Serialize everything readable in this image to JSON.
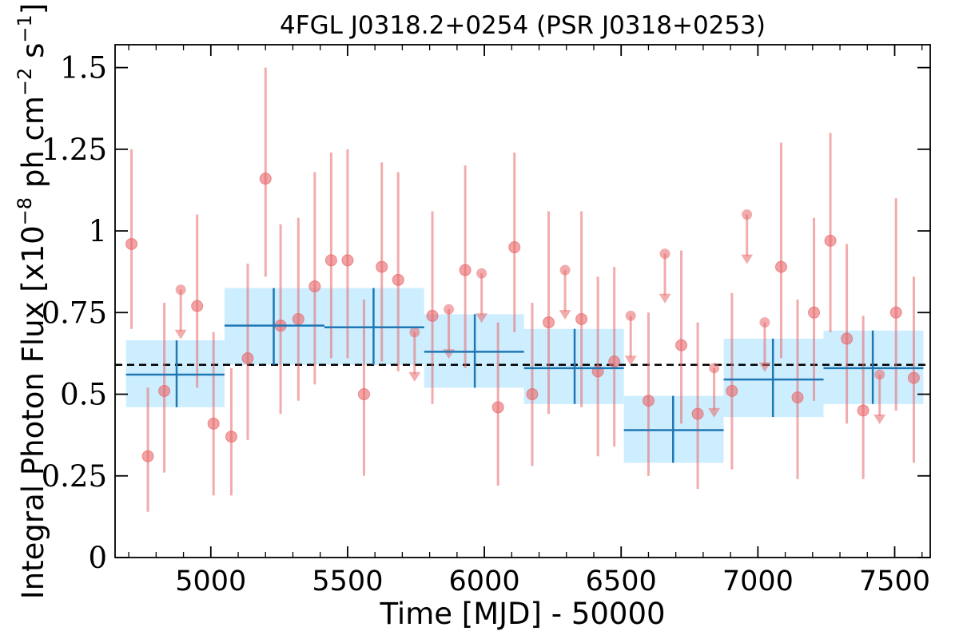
{
  "chart_data": {
    "type": "scatter",
    "title": "4FGL J0318.2+0254 (PSR J0318+0253)",
    "xlabel": "Time [MJD] - 50000",
    "ylabel": "Integral Photon Flux [x10^-8 ph cm^-2 s^-1]",
    "ylabel_parts": {
      "pre": "Integral Photon Flux [x10",
      "exp1": "−8",
      "mid": " ph cm",
      "exp2": "−2",
      "mid2": " s",
      "exp3": "−1",
      "post": "]"
    },
    "xlim": [
      4650,
      7630
    ],
    "ylim": [
      0,
      1.57
    ],
    "x_ticks": [
      5000,
      5500,
      6000,
      6500,
      7000,
      7500
    ],
    "x_tick_labels": [
      "5000",
      "5500",
      "6000",
      "6500",
      "7000",
      "7500"
    ],
    "y_ticks": [
      0,
      0.25,
      0.5,
      0.75,
      1.0,
      1.25,
      1.5
    ],
    "y_tick_labels": [
      "0",
      "0.25",
      "0.5",
      "0.75",
      "1",
      "1.25",
      "1.5"
    ],
    "mean_flux": 0.59,
    "colors": {
      "points": "#e8686a",
      "bins_line": "#1f77b4",
      "bins_band": "#cdeeff",
      "mean_line": "#000000"
    },
    "monthly_points": [
      {
        "x": 4710,
        "y": 0.96,
        "ylo": 0.7,
        "yhi": 1.25
      },
      {
        "x": 4770,
        "y": 0.31,
        "ylo": 0.14,
        "yhi": 0.52
      },
      {
        "x": 4830,
        "y": 0.51,
        "ylo": 0.26,
        "yhi": 0.78
      },
      {
        "x": 4950,
        "y": 0.77,
        "ylo": 0.52,
        "yhi": 1.05
      },
      {
        "x": 5010,
        "y": 0.41,
        "ylo": 0.19,
        "yhi": 0.69
      },
      {
        "x": 5075,
        "y": 0.37,
        "ylo": 0.19,
        "yhi": 0.58
      },
      {
        "x": 5135,
        "y": 0.61,
        "ylo": 0.36,
        "yhi": 0.9
      },
      {
        "x": 5200,
        "y": 1.16,
        "ylo": 0.86,
        "yhi": 1.5
      },
      {
        "x": 5255,
        "y": 0.71,
        "ylo": 0.44,
        "yhi": 1.02
      },
      {
        "x": 5320,
        "y": 0.73,
        "ylo": 0.48,
        "yhi": 1.04
      },
      {
        "x": 5380,
        "y": 0.83,
        "ylo": 0.53,
        "yhi": 1.18
      },
      {
        "x": 5440,
        "y": 0.91,
        "ylo": 0.61,
        "yhi": 1.24
      },
      {
        "x": 5500,
        "y": 0.91,
        "ylo": 0.61,
        "yhi": 1.25
      },
      {
        "x": 5560,
        "y": 0.5,
        "ylo": 0.25,
        "yhi": 0.79
      },
      {
        "x": 5625,
        "y": 0.89,
        "ylo": 0.6,
        "yhi": 1.21
      },
      {
        "x": 5685,
        "y": 0.85,
        "ylo": 0.57,
        "yhi": 1.18
      },
      {
        "x": 5810,
        "y": 0.74,
        "ylo": 0.47,
        "yhi": 1.06
      },
      {
        "x": 5930,
        "y": 0.88,
        "ylo": 0.58,
        "yhi": 1.2
      },
      {
        "x": 6050,
        "y": 0.46,
        "ylo": 0.22,
        "yhi": 0.72
      },
      {
        "x": 6110,
        "y": 0.95,
        "ylo": 0.69,
        "yhi": 1.24
      },
      {
        "x": 6175,
        "y": 0.5,
        "ylo": 0.28,
        "yhi": 0.78
      },
      {
        "x": 6235,
        "y": 0.72,
        "ylo": 0.44,
        "yhi": 1.06
      },
      {
        "x": 6355,
        "y": 0.73,
        "ylo": 0.46,
        "yhi": 1.06
      },
      {
        "x": 6415,
        "y": 0.57,
        "ylo": 0.31,
        "yhi": 0.86
      },
      {
        "x": 6475,
        "y": 0.6,
        "ylo": 0.34,
        "yhi": 0.89
      },
      {
        "x": 6600,
        "y": 0.48,
        "ylo": 0.25,
        "yhi": 0.75
      },
      {
        "x": 6720,
        "y": 0.65,
        "ylo": 0.41,
        "yhi": 0.94
      },
      {
        "x": 6780,
        "y": 0.44,
        "ylo": 0.21,
        "yhi": 0.72
      },
      {
        "x": 6905,
        "y": 0.51,
        "ylo": 0.27,
        "yhi": 0.81
      },
      {
        "x": 7085,
        "y": 0.89,
        "ylo": 0.61,
        "yhi": 1.27
      },
      {
        "x": 7145,
        "y": 0.49,
        "ylo": 0.24,
        "yhi": 0.79
      },
      {
        "x": 7205,
        "y": 0.75,
        "ylo": 0.48,
        "yhi": 1.04
      },
      {
        "x": 7265,
        "y": 0.97,
        "ylo": 0.69,
        "yhi": 1.3
      },
      {
        "x": 7325,
        "y": 0.67,
        "ylo": 0.41,
        "yhi": 0.96
      },
      {
        "x": 7385,
        "y": 0.45,
        "ylo": 0.24,
        "yhi": 0.74
      },
      {
        "x": 7505,
        "y": 0.75,
        "ylo": 0.45,
        "yhi": 1.1
      },
      {
        "x": 7570,
        "y": 0.55,
        "ylo": 0.29,
        "yhi": 0.86
      }
    ],
    "upper_limits": [
      {
        "x": 4890,
        "y": 0.82
      },
      {
        "x": 5745,
        "y": 0.69
      },
      {
        "x": 5870,
        "y": 0.76
      },
      {
        "x": 5990,
        "y": 0.87
      },
      {
        "x": 6295,
        "y": 0.88
      },
      {
        "x": 6535,
        "y": 0.74
      },
      {
        "x": 6660,
        "y": 0.93
      },
      {
        "x": 6840,
        "y": 0.58
      },
      {
        "x": 6960,
        "y": 1.05
      },
      {
        "x": 7025,
        "y": 0.72
      },
      {
        "x": 7445,
        "y": 0.56
      }
    ],
    "binned": [
      {
        "x0": 4690,
        "x1": 5050,
        "xc": 4875,
        "y": 0.56,
        "ylo": 0.46,
        "yhi": 0.665
      },
      {
        "x0": 5050,
        "x1": 5415,
        "xc": 5230,
        "y": 0.71,
        "ylo": 0.59,
        "yhi": 0.825
      },
      {
        "x0": 5415,
        "x1": 5780,
        "xc": 5595,
        "y": 0.705,
        "ylo": 0.59,
        "yhi": 0.825
      },
      {
        "x0": 5780,
        "x1": 6145,
        "xc": 5965,
        "y": 0.63,
        "ylo": 0.52,
        "yhi": 0.745
      },
      {
        "x0": 6145,
        "x1": 6510,
        "xc": 6330,
        "y": 0.58,
        "ylo": 0.47,
        "yhi": 0.7
      },
      {
        "x0": 6510,
        "x1": 6875,
        "xc": 6690,
        "y": 0.39,
        "ylo": 0.29,
        "yhi": 0.495
      },
      {
        "x0": 6875,
        "x1": 7240,
        "xc": 7055,
        "y": 0.545,
        "ylo": 0.43,
        "yhi": 0.67
      },
      {
        "x0": 7240,
        "x1": 7605,
        "xc": 7420,
        "y": 0.58,
        "ylo": 0.47,
        "yhi": 0.695
      }
    ]
  }
}
